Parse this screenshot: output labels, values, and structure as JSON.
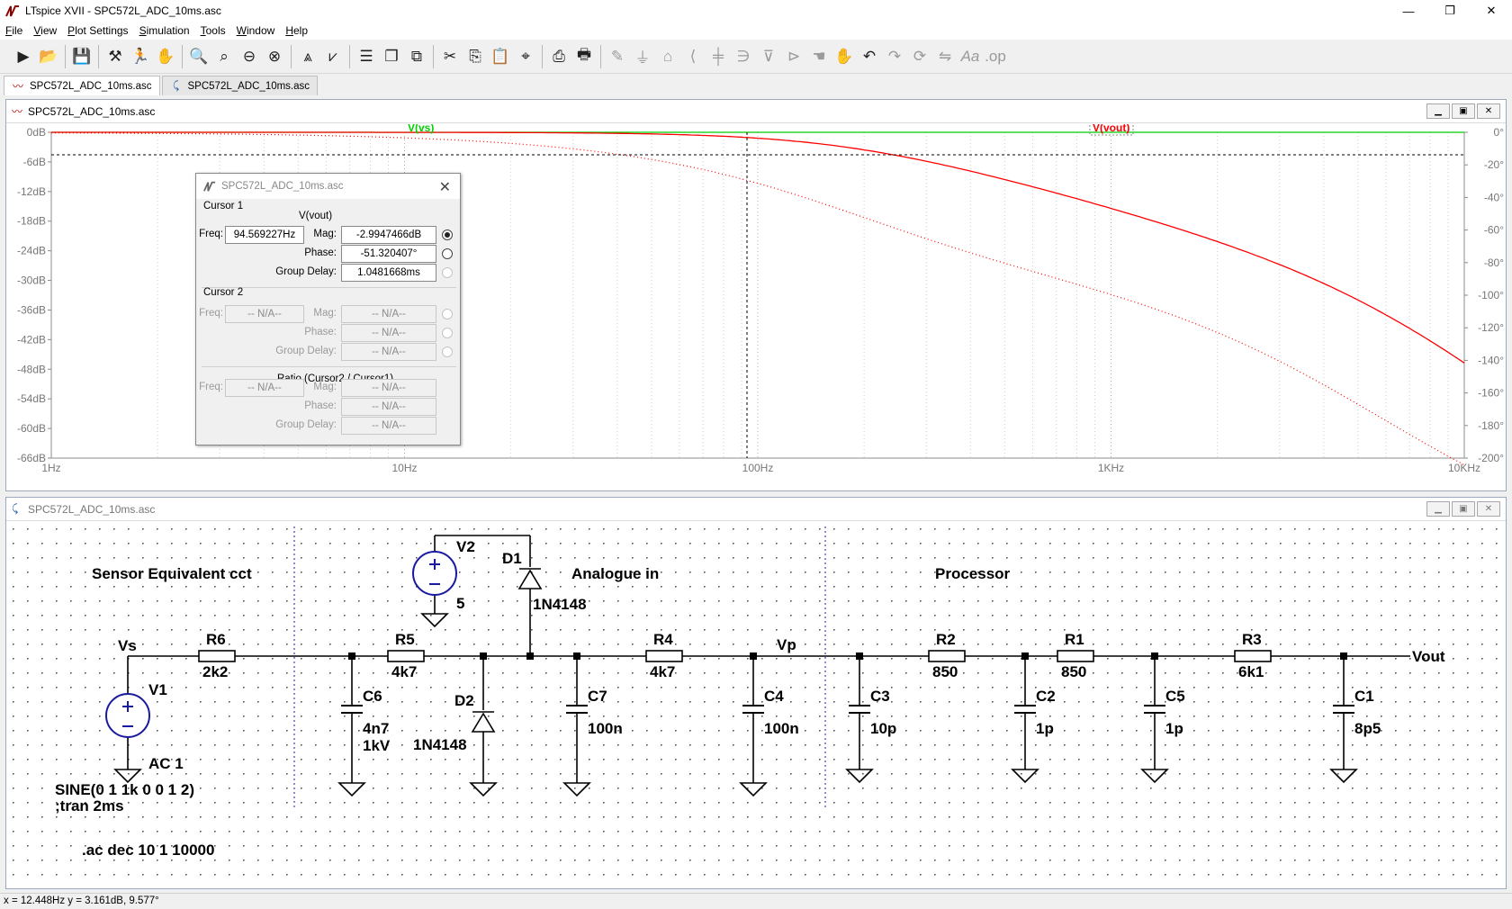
{
  "window": {
    "title": "LTspice XVII - SPC572L_ADC_10ms.asc",
    "minimize": "—",
    "maximize": "❐",
    "close": "✕"
  },
  "menu": [
    "File",
    "View",
    "Plot Settings",
    "Simulation",
    "Tools",
    "Window",
    "Help"
  ],
  "toolbar_icons": [
    "run-icon",
    "open-icon",
    "save-icon",
    "control-panel-icon",
    "halt-icon",
    "pan-icon",
    "zoom-in-icon",
    "zoom-full-icon",
    "zoom-out-icon",
    "zoom-cancel-icon",
    "autorange-icon",
    "mark-icon",
    "tile-horizontal-icon",
    "cascade-icon",
    "tile-vertical-icon",
    "cut-icon",
    "copy-icon",
    "paste-icon",
    "find-icon",
    "print-icon",
    "print-setup-icon",
    "wire-icon",
    "ground-icon",
    "label-icon",
    "resistor-icon",
    "capacitor-icon",
    "inductor-icon",
    "diode-icon",
    "component-icon",
    "move-icon",
    "drag-icon",
    "undo-icon",
    "redo-icon",
    "rotate-icon",
    "mirror-icon",
    "text-icon",
    "spice-directive-icon"
  ],
  "tabs": [
    {
      "label": "SPC572L_ADC_10ms.asc",
      "type": "waveform"
    },
    {
      "label": "SPC572L_ADC_10ms.asc",
      "type": "schematic"
    }
  ],
  "plot": {
    "title": "SPC572L_ADC_10ms.asc",
    "traces": [
      {
        "name": "V(vs)",
        "color": "#00d000"
      },
      {
        "name": "V(vout)",
        "color": "#ff0000"
      }
    ],
    "y_left_ticks": [
      "0dB",
      "-6dB",
      "-12dB",
      "-18dB",
      "-24dB",
      "-30dB",
      "-36dB",
      "-42dB",
      "-48dB",
      "-54dB",
      "-60dB",
      "-66dB"
    ],
    "y_right_ticks": [
      "0°",
      "-20°",
      "-40°",
      "-60°",
      "-80°",
      "-100°",
      "-120°",
      "-140°",
      "-160°",
      "-180°",
      "-200°"
    ],
    "x_ticks": [
      "1Hz",
      "10Hz",
      "100Hz",
      "1KHz",
      "10KHz"
    ]
  },
  "cursor": {
    "title": "SPC572L_ADC_10ms.asc",
    "cursor1_label": "Cursor 1",
    "trace": "V(vout)",
    "freq_label": "Freq:",
    "freq": "94.569227Hz",
    "mag_label": "Mag:",
    "mag": "-2.9947466dB",
    "phase_label": "Phase:",
    "phase": "-51.320407°",
    "gd_label": "Group Delay:",
    "gd": "1.0481668ms",
    "cursor2_label": "Cursor 2",
    "na": "-- N/A--",
    "na2": "-- N/A--",
    "ratio_label": "Ratio (Cursor2 / Cursor1)"
  },
  "schematic": {
    "title": "SPC572L_ADC_10ms.asc",
    "section_sensor": "Sensor Equivalent cct",
    "section_analogue": "Analogue in",
    "section_processor": "Processor",
    "V1": "V1",
    "V1_val": "AC 1",
    "V1_sine": "SINE(0 1 1k 0 0 1 2)",
    "tran": ";tran 2ms",
    "V2": "V2",
    "V2_val": "5",
    "D1": "D1",
    "D1_val": "1N4148",
    "D2": "D2",
    "D2_val": "1N4148",
    "R6": "R6",
    "R6_val": "2k2",
    "R5": "R5",
    "R5_val": "4k7",
    "R4": "R4",
    "R4_val": "4k7",
    "R2": "R2",
    "R2_val": "850",
    "R1": "R1",
    "R1_val": "850",
    "R3": "R3",
    "R3_val": "6k1",
    "C6": "C6",
    "C6_val": "4n7",
    "C6_val2": "1kV",
    "C7": "C7",
    "C7_val": "100n",
    "C4": "C4",
    "C4_val": "100n",
    "C3": "C3",
    "C3_val": "10p",
    "C2": "C2",
    "C2_val": "1p",
    "C5": "C5",
    "C5_val": "1p",
    "C1": "C1",
    "C1_val": "8p5",
    "net_vs": "Vs",
    "net_vp": "Vp",
    "net_vout": "Vout",
    "ac_directive": ".ac dec 10 1 10000"
  },
  "status": {
    "text": "x = 12.448Hz    y = 3.161dB, 9.577°"
  }
}
